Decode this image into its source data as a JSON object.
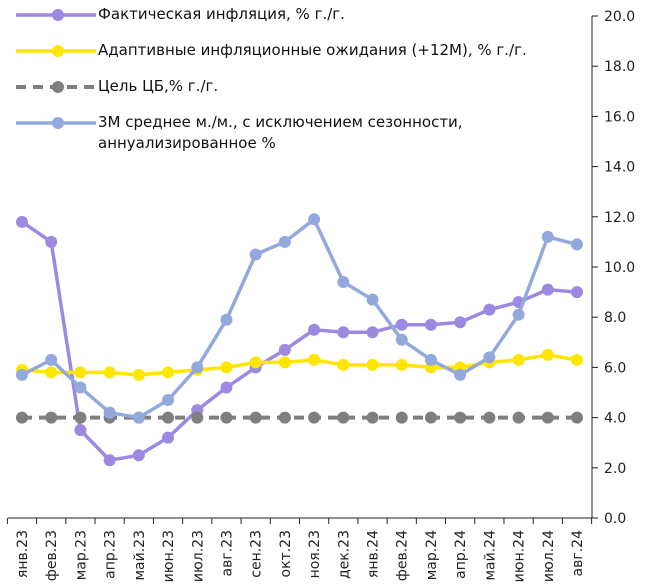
{
  "chart_data": {
    "type": "line",
    "categories": [
      "янв.23",
      "фев.23",
      "мар.23",
      "апр.23",
      "май.23",
      "июн.23",
      "июл.23",
      "авг.23",
      "сен.23",
      "окт.23",
      "ноя.23",
      "дек.23",
      "янв.24",
      "фев.24",
      "мар.24",
      "апр.24",
      "май.24",
      "июн.24",
      "июл.24",
      "авг.24"
    ],
    "series": [
      {
        "name": "Фактическая инфляция, % г./г.",
        "color": "#9d88e2",
        "style": "solid",
        "values": [
          11.8,
          11.0,
          3.5,
          2.3,
          2.5,
          3.2,
          4.3,
          5.2,
          6.0,
          6.7,
          7.5,
          7.4,
          7.4,
          7.7,
          7.7,
          7.8,
          8.3,
          8.6,
          9.1,
          9.0
        ]
      },
      {
        "name": "Адаптивные инфляционные ожидания (+12М), % г./г.",
        "color": "#ffe600",
        "style": "solid",
        "values": [
          5.9,
          5.8,
          5.8,
          5.8,
          5.7,
          5.8,
          5.9,
          6.0,
          6.2,
          6.2,
          6.3,
          6.1,
          6.1,
          6.1,
          6.0,
          6.0,
          6.2,
          6.3,
          6.5,
          6.3
        ]
      },
      {
        "name": "Цель ЦБ,% г./г.",
        "color": "#7f7f7f",
        "style": "dashed",
        "values": [
          4.0,
          4.0,
          4.0,
          4.0,
          4.0,
          4.0,
          4.0,
          4.0,
          4.0,
          4.0,
          4.0,
          4.0,
          4.0,
          4.0,
          4.0,
          4.0,
          4.0,
          4.0,
          4.0,
          4.0
        ]
      },
      {
        "name": "3М среднее м./м., с исключением сезонности, аннуализированное %",
        "color": "#93a9dd",
        "style": "solid",
        "values": [
          5.7,
          6.3,
          5.2,
          4.2,
          4.0,
          4.7,
          6.0,
          7.9,
          10.5,
          11.0,
          11.9,
          9.4,
          8.7,
          7.1,
          6.3,
          5.7,
          6.4,
          8.1,
          11.2,
          10.9
        ]
      }
    ],
    "ylim": [
      0,
      20
    ],
    "yticks": [
      {
        "value": 0,
        "label": "0.0"
      },
      {
        "value": 2,
        "label": "2.0"
      },
      {
        "value": 4,
        "label": "4.0"
      },
      {
        "value": 6,
        "label": "6.0"
      },
      {
        "value": 8,
        "label": "8.0"
      },
      {
        "value": 10,
        "label": "10.0"
      },
      {
        "value": 12,
        "label": "12.0"
      },
      {
        "value": 14,
        "label": "14.0"
      },
      {
        "value": 16,
        "label": "16.0"
      },
      {
        "value": 18,
        "label": "18.0"
      },
      {
        "value": 20,
        "label": "20.0"
      }
    ],
    "y_axis_side": "right"
  }
}
